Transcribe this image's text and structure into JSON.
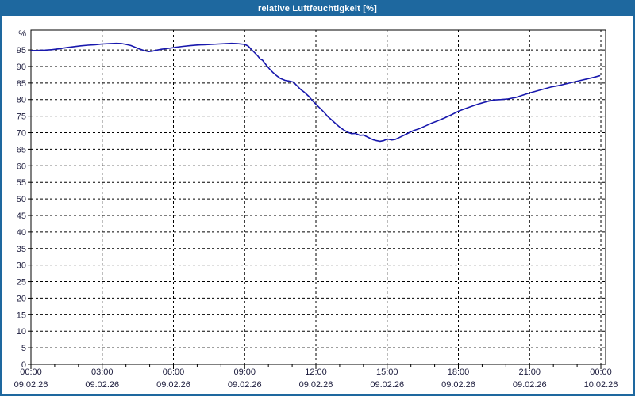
{
  "window": {
    "title": "relative Luftfeuchtigkeit [%]"
  },
  "colors": {
    "titlebar": "#1e689f",
    "window_border": "#1e689f",
    "line": "#1818ad",
    "grid": "#000000",
    "axis": "#000000",
    "label": "#1b1b3c",
    "plot_bg": "#ffffff",
    "title_text": "#ffffff"
  },
  "chart_data": {
    "type": "line",
    "title": "relative Luftfeuchtigkeit [%]",
    "xlabel": "",
    "ylabel": "%",
    "ylim": [
      0,
      101
    ],
    "yticks": [
      0,
      5,
      10,
      15,
      20,
      25,
      30,
      35,
      40,
      45,
      50,
      55,
      60,
      65,
      70,
      75,
      80,
      85,
      90,
      95
    ],
    "xlim_hours": [
      0,
      24.2
    ],
    "grid": "dashed",
    "legend": "none",
    "xticks": [
      {
        "hour": 0,
        "time": "00:00",
        "date": "09.02.26"
      },
      {
        "hour": 3,
        "time": "03:00",
        "date": "09.02.26"
      },
      {
        "hour": 6,
        "time": "06:00",
        "date": "09.02.26"
      },
      {
        "hour": 9,
        "time": "09:00",
        "date": "09.02.26"
      },
      {
        "hour": 12,
        "time": "12:00",
        "date": "09.02.26"
      },
      {
        "hour": 15,
        "time": "15:00",
        "date": "09.02.26"
      },
      {
        "hour": 18,
        "time": "18:00",
        "date": "09.02.26"
      },
      {
        "hour": 21,
        "time": "21:00",
        "date": "09.02.26"
      },
      {
        "hour": 24,
        "time": "00:00",
        "date": "10.02.26"
      }
    ],
    "minor_xtick_every_hours": 1,
    "series": [
      {
        "name": "relative Luftfeuchtigkeit [%]",
        "color": "#1818ad",
        "points": [
          [
            0,
            94.8
          ],
          [
            0.3,
            94.85
          ],
          [
            0.6,
            94.95
          ],
          [
            0.9,
            95.1
          ],
          [
            1.2,
            95.35
          ],
          [
            1.5,
            95.7
          ],
          [
            1.8,
            96.0
          ],
          [
            2.1,
            96.25
          ],
          [
            2.4,
            96.45
          ],
          [
            2.7,
            96.6
          ],
          [
            3.0,
            96.8
          ],
          [
            3.3,
            96.9
          ],
          [
            3.6,
            97.0
          ],
          [
            3.8,
            96.95
          ],
          [
            4.0,
            96.7
          ],
          [
            4.2,
            96.35
          ],
          [
            4.4,
            95.8
          ],
          [
            4.6,
            95.2
          ],
          [
            4.8,
            94.75
          ],
          [
            4.95,
            94.5
          ],
          [
            5.1,
            94.6
          ],
          [
            5.3,
            94.95
          ],
          [
            5.5,
            95.2
          ],
          [
            5.8,
            95.5
          ],
          [
            6.1,
            95.8
          ],
          [
            6.4,
            96.1
          ],
          [
            6.7,
            96.3
          ],
          [
            7.0,
            96.5
          ],
          [
            7.3,
            96.6
          ],
          [
            7.6,
            96.7
          ],
          [
            7.9,
            96.8
          ],
          [
            8.2,
            96.9
          ],
          [
            8.45,
            97.0
          ],
          [
            8.7,
            96.9
          ],
          [
            9.0,
            96.7
          ],
          [
            9.15,
            96.2
          ],
          [
            9.25,
            95.4
          ],
          [
            9.4,
            94.3
          ],
          [
            9.55,
            93.2
          ],
          [
            9.65,
            92.3
          ],
          [
            9.75,
            91.9
          ],
          [
            9.9,
            90.5
          ],
          [
            10.05,
            89.2
          ],
          [
            10.2,
            88.1
          ],
          [
            10.35,
            87.2
          ],
          [
            10.5,
            86.4
          ],
          [
            10.7,
            85.8
          ],
          [
            10.85,
            85.6
          ],
          [
            11.05,
            85.3
          ],
          [
            11.2,
            84.2
          ],
          [
            11.35,
            83.1
          ],
          [
            11.5,
            82.3
          ],
          [
            11.7,
            81.0
          ],
          [
            11.85,
            79.7
          ],
          [
            12.0,
            78.6
          ],
          [
            12.2,
            77.2
          ],
          [
            12.35,
            76.1
          ],
          [
            12.5,
            74.9
          ],
          [
            12.7,
            73.6
          ],
          [
            12.9,
            72.3
          ],
          [
            13.05,
            71.4
          ],
          [
            13.2,
            70.7
          ],
          [
            13.35,
            70.1
          ],
          [
            13.5,
            69.7
          ],
          [
            13.65,
            69.8
          ],
          [
            13.85,
            69.2
          ],
          [
            14.0,
            69.3
          ],
          [
            14.2,
            68.6
          ],
          [
            14.4,
            67.9
          ],
          [
            14.55,
            67.6
          ],
          [
            14.7,
            67.4
          ],
          [
            14.85,
            67.6
          ],
          [
            15.0,
            68.1
          ],
          [
            15.2,
            67.8
          ],
          [
            15.35,
            68.0
          ],
          [
            15.5,
            68.5
          ],
          [
            15.7,
            69.2
          ],
          [
            15.9,
            69.9
          ],
          [
            16.1,
            70.6
          ],
          [
            16.35,
            71.2
          ],
          [
            16.6,
            72.0
          ],
          [
            16.85,
            72.8
          ],
          [
            17.1,
            73.5
          ],
          [
            17.4,
            74.4
          ],
          [
            17.7,
            75.4
          ],
          [
            18.0,
            76.5
          ],
          [
            18.3,
            77.3
          ],
          [
            18.6,
            78.1
          ],
          [
            18.9,
            78.8
          ],
          [
            19.2,
            79.4
          ],
          [
            19.5,
            79.9
          ],
          [
            19.8,
            80.0
          ],
          [
            20.1,
            80.2
          ],
          [
            20.4,
            80.6
          ],
          [
            20.7,
            81.3
          ],
          [
            21.0,
            82.0
          ],
          [
            21.3,
            82.6
          ],
          [
            21.6,
            83.2
          ],
          [
            21.9,
            83.8
          ],
          [
            22.2,
            84.2
          ],
          [
            22.5,
            84.7
          ],
          [
            22.8,
            85.2
          ],
          [
            23.1,
            85.7
          ],
          [
            23.4,
            86.2
          ],
          [
            23.7,
            86.7
          ],
          [
            23.95,
            87.2
          ]
        ]
      }
    ]
  }
}
